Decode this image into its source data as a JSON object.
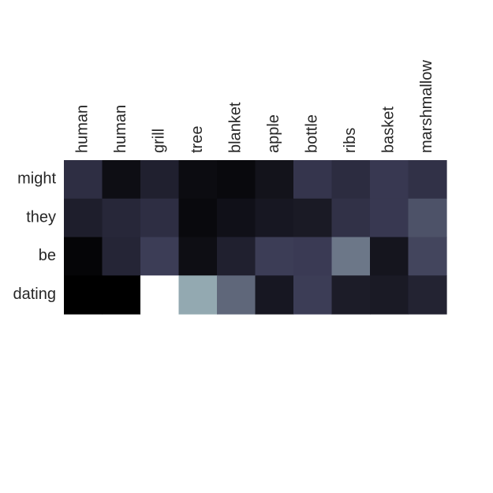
{
  "chart_data": {
    "type": "heatmap",
    "title": "",
    "xlabel": "",
    "ylabel": "",
    "x_labels": [
      "human",
      "human",
      "grill",
      "tree",
      "blanket",
      "apple",
      "bottle",
      "ribs",
      "basket",
      "marshmallow"
    ],
    "y_labels": [
      "might",
      "they",
      "be",
      "dating"
    ],
    "values": [
      [
        0.2,
        0.06,
        0.14,
        0.05,
        0.04,
        0.08,
        0.23,
        0.19,
        0.24,
        0.21
      ],
      [
        0.13,
        0.17,
        0.2,
        0.04,
        0.07,
        0.1,
        0.11,
        0.21,
        0.24,
        0.34
      ],
      [
        0.02,
        0.16,
        0.26,
        0.06,
        0.14,
        0.26,
        0.25,
        0.48,
        0.09,
        0.29
      ],
      [
        0.0,
        0.0,
        1.0,
        0.62,
        0.42,
        0.1,
        0.26,
        0.12,
        0.11,
        0.15
      ]
    ],
    "x_ticks_position": "top",
    "x_tick_rotation": "vertical",
    "grid": false,
    "legend": "none",
    "colors": {
      "low": "#000000",
      "mid": "#3c3c5a",
      "high": "#ffffff",
      "label": "#262626"
    }
  }
}
